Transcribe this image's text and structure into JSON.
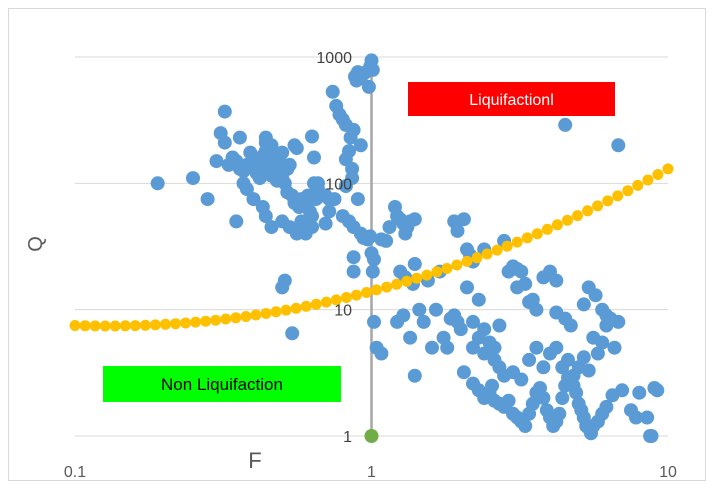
{
  "chart_data": {
    "type": "scatter",
    "title": "",
    "xlabel": "F",
    "ylabel": "Q",
    "x_scale": "log",
    "y_scale": "log",
    "xlim": [
      0.1,
      10
    ],
    "ylim": [
      1,
      1000
    ],
    "x_ticks": [
      "0.1",
      "1",
      "10"
    ],
    "y_ticks": [
      "1",
      "10",
      "100",
      "1000"
    ],
    "grid": "horizontal",
    "annotations": {
      "liquefaction": {
        "text": "Liquifactionl",
        "color": "#ff0000"
      },
      "non_liquefaction": {
        "text": "Non Liquifaction",
        "color": "#00ff00"
      }
    },
    "colors": {
      "points": "#5b9bd5",
      "boundary": "#ffc000",
      "vertical_line": "#a6a6a6",
      "marker_at_1": "#70ad47",
      "grid": "#d9d9d9"
    },
    "boundary_curve": {
      "x_start": 0.1,
      "x_end": 10,
      "count": 60,
      "y_at_0_1": 7.5,
      "y_at_1": 14,
      "y_at_10": 130
    },
    "vertical_line": {
      "x": 1,
      "y_from": 1,
      "y_to": 1000
    },
    "marker_at_1": {
      "x": 1,
      "y": 1
    },
    "points": [
      [
        0.19,
        100
      ],
      [
        0.25,
        110
      ],
      [
        0.28,
        75
      ],
      [
        0.3,
        150
      ],
      [
        0.31,
        250
      ],
      [
        0.32,
        210
      ],
      [
        0.33,
        140
      ],
      [
        0.32,
        370
      ],
      [
        0.34,
        160
      ],
      [
        0.35,
        150
      ],
      [
        0.36,
        130
      ],
      [
        0.36,
        230
      ],
      [
        0.37,
        125
      ],
      [
        0.37,
        100
      ],
      [
        0.38,
        140
      ],
      [
        0.38,
        90
      ],
      [
        0.39,
        175
      ],
      [
        0.4,
        150
      ],
      [
        0.41,
        120
      ],
      [
        0.42,
        110
      ],
      [
        0.42,
        140
      ],
      [
        0.43,
        165
      ],
      [
        0.43,
        160
      ],
      [
        0.43,
        155
      ],
      [
        0.44,
        210
      ],
      [
        0.44,
        230
      ],
      [
        0.44,
        180
      ],
      [
        0.44,
        170
      ],
      [
        0.45,
        150
      ],
      [
        0.45,
        130
      ],
      [
        0.45,
        125
      ],
      [
        0.45,
        120
      ],
      [
        0.46,
        115
      ],
      [
        0.46,
        200
      ],
      [
        0.47,
        160
      ],
      [
        0.47,
        145
      ],
      [
        0.47,
        140
      ],
      [
        0.48,
        135
      ],
      [
        0.48,
        130
      ],
      [
        0.48,
        105
      ],
      [
        0.49,
        125
      ],
      [
        0.49,
        150
      ],
      [
        0.5,
        175
      ],
      [
        0.5,
        120
      ],
      [
        0.5,
        110
      ],
      [
        0.51,
        100
      ],
      [
        0.52,
        130
      ],
      [
        0.52,
        85
      ],
      [
        0.53,
        140
      ],
      [
        0.54,
        80
      ],
      [
        0.55,
        200
      ],
      [
        0.55,
        70
      ],
      [
        0.56,
        190
      ],
      [
        0.57,
        65
      ],
      [
        0.58,
        75
      ],
      [
        0.59,
        70
      ],
      [
        0.6,
        70
      ],
      [
        0.61,
        80
      ],
      [
        0.62,
        60
      ],
      [
        0.63,
        55
      ],
      [
        0.64,
        100
      ],
      [
        0.65,
        75
      ],
      [
        0.66,
        100
      ],
      [
        0.66,
        85
      ],
      [
        0.68,
        80
      ],
      [
        0.7,
        80
      ],
      [
        0.72,
        75
      ],
      [
        0.75,
        75
      ],
      [
        0.4,
        75
      ],
      [
        0.43,
        65
      ],
      [
        0.44,
        55
      ],
      [
        0.46,
        45
      ],
      [
        0.5,
        50
      ],
      [
        0.53,
        45
      ],
      [
        0.56,
        40
      ],
      [
        0.58,
        50
      ],
      [
        0.6,
        40
      ],
      [
        0.63,
        45
      ],
      [
        0.66,
        90
      ],
      [
        0.7,
        48
      ],
      [
        0.72,
        60
      ],
      [
        0.63,
        235
      ],
      [
        0.64,
        160
      ],
      [
        0.35,
        50
      ],
      [
        0.58,
        45
      ],
      [
        0.51,
        17
      ],
      [
        0.5,
        15
      ],
      [
        0.54,
        6.5
      ],
      [
        0.74,
        530
      ],
      [
        0.76,
        410
      ],
      [
        0.78,
        350
      ],
      [
        0.8,
        320
      ],
      [
        0.82,
        290
      ],
      [
        0.85,
        230
      ],
      [
        0.84,
        180
      ],
      [
        0.82,
        155
      ],
      [
        0.86,
        130
      ],
      [
        0.87,
        265
      ],
      [
        0.88,
        700
      ],
      [
        0.89,
        650
      ],
      [
        0.9,
        760
      ],
      [
        0.92,
        680
      ],
      [
        0.95,
        750
      ],
      [
        0.98,
        580
      ],
      [
        0.99,
        840
      ],
      [
        1.0,
        940
      ],
      [
        1.01,
        790
      ],
      [
        0.92,
        200
      ],
      [
        0.86,
        110
      ],
      [
        0.82,
        95
      ],
      [
        0.8,
        55
      ],
      [
        0.84,
        50
      ],
      [
        0.87,
        45
      ],
      [
        0.9,
        75
      ],
      [
        0.92,
        40
      ],
      [
        0.94,
        37
      ],
      [
        0.97,
        36
      ],
      [
        0.99,
        38
      ],
      [
        1.0,
        28
      ],
      [
        1.01,
        20
      ],
      [
        1.02,
        25
      ],
      [
        0.87,
        26
      ],
      [
        0.87,
        20
      ],
      [
        1.02,
        8
      ],
      [
        1.04,
        5
      ],
      [
        1.08,
        4.5
      ],
      [
        1.08,
        36
      ],
      [
        1.12,
        35
      ],
      [
        1.15,
        45
      ],
      [
        1.2,
        65
      ],
      [
        1.22,
        55
      ],
      [
        1.25,
        52
      ],
      [
        1.28,
        48
      ],
      [
        1.3,
        40
      ],
      [
        1.32,
        45
      ],
      [
        1.35,
        50
      ],
      [
        1.4,
        52
      ],
      [
        1.25,
        20
      ],
      [
        1.3,
        18
      ],
      [
        1.4,
        23
      ],
      [
        1.22,
        8
      ],
      [
        1.28,
        9
      ],
      [
        1.35,
        6
      ],
      [
        1.38,
        16
      ],
      [
        1.45,
        10
      ],
      [
        1.5,
        8
      ],
      [
        1.55,
        17
      ],
      [
        1.6,
        5
      ],
      [
        1.65,
        10
      ],
      [
        1.7,
        20
      ],
      [
        1.75,
        6
      ],
      [
        1.8,
        5
      ],
      [
        1.85,
        8.5
      ],
      [
        1.9,
        9
      ],
      [
        1.95,
        8
      ],
      [
        2.0,
        7
      ],
      [
        1.9,
        50
      ],
      [
        1.95,
        42
      ],
      [
        2.05,
        52
      ],
      [
        2.1,
        30
      ],
      [
        2.15,
        27
      ],
      [
        2.2,
        24
      ],
      [
        2.3,
        12
      ],
      [
        2.4,
        30
      ],
      [
        2.1,
        15
      ],
      [
        2.2,
        8
      ],
      [
        2.2,
        5
      ],
      [
        2.3,
        6
      ],
      [
        2.4,
        7
      ],
      [
        2.5,
        5.5
      ],
      [
        2.6,
        5
      ],
      [
        2.7,
        7.5
      ],
      [
        2.8,
        35
      ],
      [
        2.9,
        20
      ],
      [
        3.0,
        22
      ],
      [
        3.1,
        21
      ],
      [
        3.2,
        20
      ],
      [
        3.1,
        15
      ],
      [
        3.3,
        16
      ],
      [
        3.4,
        11.5
      ],
      [
        3.5,
        12
      ],
      [
        3.6,
        10
      ],
      [
        1.4,
        3
      ],
      [
        2.05,
        3.2
      ],
      [
        2.2,
        2.6
      ],
      [
        2.3,
        2.3
      ],
      [
        2.4,
        2.0
      ],
      [
        2.5,
        2.2
      ],
      [
        2.55,
        2.5
      ],
      [
        2.6,
        1.9
      ],
      [
        2.7,
        1.8
      ],
      [
        2.8,
        1.7
      ],
      [
        2.9,
        1.9
      ],
      [
        3.0,
        1.5
      ],
      [
        3.1,
        1.4
      ],
      [
        3.2,
        1.3
      ],
      [
        3.3,
        1.2
      ],
      [
        3.4,
        1.5
      ],
      [
        3.5,
        1.8
      ],
      [
        3.6,
        2.2
      ],
      [
        3.7,
        2.4
      ],
      [
        3.8,
        2.0
      ],
      [
        3.9,
        1.6
      ],
      [
        4.0,
        1.4
      ],
      [
        4.1,
        1.2
      ],
      [
        4.2,
        1.3
      ],
      [
        4.3,
        1.5
      ],
      [
        4.4,
        2.0
      ],
      [
        4.5,
        2.5
      ],
      [
        4.6,
        2.9
      ],
      [
        4.7,
        2.7
      ],
      [
        4.8,
        2.5
      ],
      [
        4.9,
        2.2
      ],
      [
        5.0,
        1.8
      ],
      [
        5.1,
        1.6
      ],
      [
        5.2,
        1.4
      ],
      [
        5.3,
        1.2
      ],
      [
        5.4,
        1.15
      ],
      [
        5.5,
        1.05
      ],
      [
        5.6,
        1.2
      ],
      [
        5.8,
        1.3
      ],
      [
        6.0,
        1.5
      ],
      [
        6.2,
        1.7
      ],
      [
        6.5,
        2.1
      ],
      [
        7.0,
        2.3
      ],
      [
        7.5,
        1.6
      ],
      [
        7.8,
        1.4
      ],
      [
        8.0,
        2.2
      ],
      [
        8.5,
        1.4
      ],
      [
        8.7,
        1.0
      ],
      [
        8.8,
        1.0
      ],
      [
        9.0,
        2.4
      ],
      [
        9.2,
        2.3
      ],
      [
        2.4,
        4.5
      ],
      [
        2.6,
        4.0
      ],
      [
        2.7,
        3.5
      ],
      [
        2.8,
        3.0
      ],
      [
        3.0,
        3.2
      ],
      [
        3.2,
        2.8
      ],
      [
        3.4,
        4.0
      ],
      [
        3.6,
        5.0
      ],
      [
        3.8,
        3.5
      ],
      [
        4.0,
        4.5
      ],
      [
        4.2,
        5.0
      ],
      [
        4.4,
        3.5
      ],
      [
        4.6,
        4.0
      ],
      [
        4.8,
        3.0
      ],
      [
        5.0,
        3.5
      ],
      [
        5.2,
        4.2
      ],
      [
        5.4,
        3.3
      ],
      [
        5.6,
        6.0
      ],
      [
        5.8,
        4.5
      ],
      [
        6.0,
        5.5
      ],
      [
        6.2,
        7.5
      ],
      [
        6.4,
        8.5
      ],
      [
        6.6,
        5.0
      ],
      [
        6.8,
        8.0
      ],
      [
        4.2,
        9.5
      ],
      [
        4.5,
        8.5
      ],
      [
        4.7,
        7.5
      ],
      [
        5.2,
        11
      ],
      [
        5.4,
        15
      ],
      [
        5.7,
        13
      ],
      [
        6.0,
        10
      ],
      [
        6.2,
        9
      ],
      [
        4.0,
        20
      ],
      [
        3.8,
        18
      ],
      [
        4.2,
        17
      ],
      [
        4.5,
        290
      ],
      [
        6.8,
        200
      ]
    ]
  }
}
